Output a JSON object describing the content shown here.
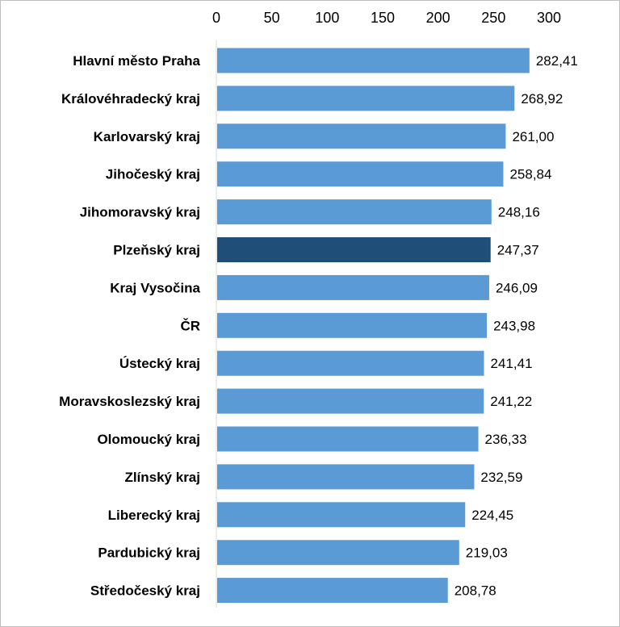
{
  "chart_data": {
    "type": "bar",
    "orientation": "horizontal",
    "title": "",
    "xlabel": "",
    "ylabel": "",
    "xlim": [
      0,
      300
    ],
    "x_ticks": [
      "0",
      "50",
      "100",
      "150",
      "200",
      "250",
      "300"
    ],
    "x_tick_values": [
      0,
      50,
      100,
      150,
      200,
      250,
      300
    ],
    "axis_position": "top",
    "grid": false,
    "legend": "none",
    "colors": {
      "default": "#5b9bd5",
      "highlight": "#1f4e79"
    },
    "highlight_category": "Plzeňský kraj",
    "categories": [
      "Hlavní město Praha",
      "Královéhradecký kraj",
      "Karlovarský kraj",
      "Jihočeský kraj",
      "Jihomoravský kraj",
      "Plzeňský kraj",
      "Kraj Vysočina",
      "ČR",
      "Ústecký kraj",
      "Moravskoslezský kraj",
      "Olomoucký kraj",
      "Zlínský kraj",
      "Liberecký kraj",
      "Pardubický kraj",
      "Středočeský kraj"
    ],
    "values": [
      282.41,
      268.92,
      261.0,
      258.84,
      248.16,
      247.37,
      246.09,
      243.98,
      241.41,
      241.22,
      236.33,
      232.59,
      224.45,
      219.03,
      208.78
    ],
    "value_labels": [
      "282,41",
      "268,92",
      "261,00",
      "258,84",
      "248,16",
      "247,37",
      "246,09",
      "243,98",
      "241,41",
      "241,22",
      "236,33",
      "232,59",
      "224,45",
      "219,03",
      "208,78"
    ]
  }
}
